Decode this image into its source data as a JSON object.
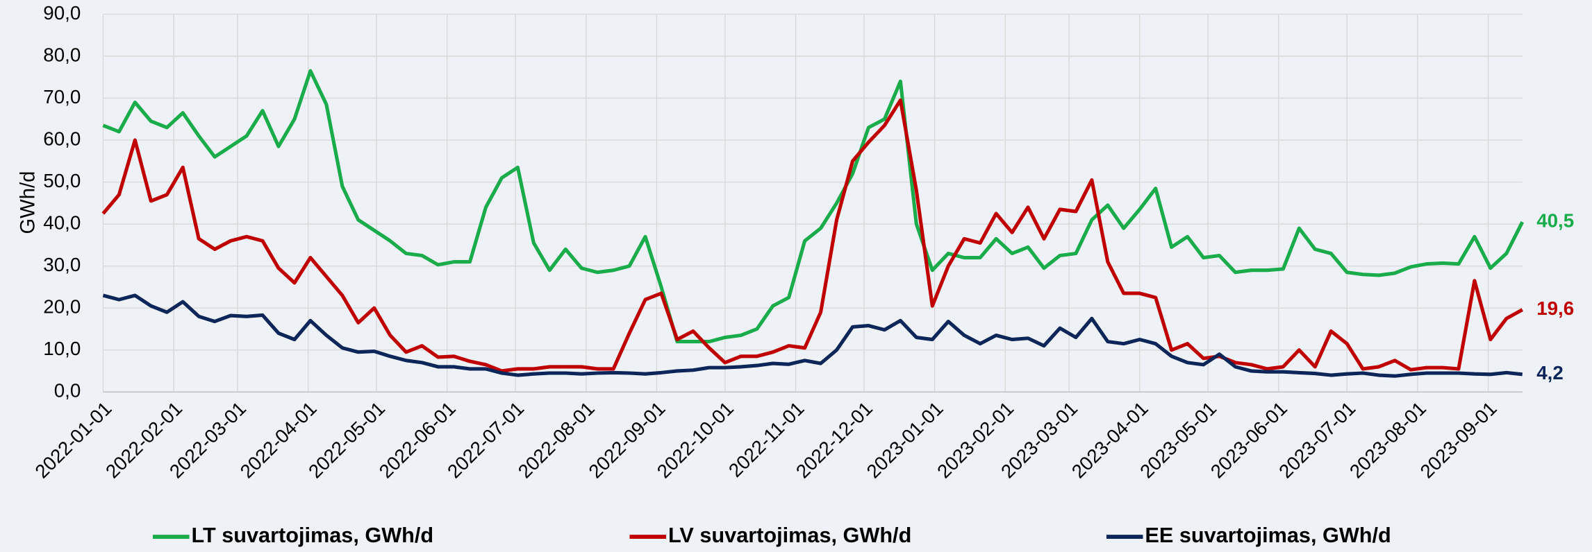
{
  "chart_data": {
    "type": "line",
    "y_label": "GWh/d",
    "x": [
      "2022-01-01",
      "2022-01-08",
      "2022-01-15",
      "2022-01-22",
      "2022-01-29",
      "2022-02-05",
      "2022-02-12",
      "2022-02-19",
      "2022-02-26",
      "2022-03-05",
      "2022-03-12",
      "2022-03-19",
      "2022-03-26",
      "2022-04-02",
      "2022-04-09",
      "2022-04-16",
      "2022-04-23",
      "2022-04-30",
      "2022-05-07",
      "2022-05-14",
      "2022-05-21",
      "2022-05-28",
      "2022-06-04",
      "2022-06-11",
      "2022-06-18",
      "2022-06-25",
      "2022-07-02",
      "2022-07-09",
      "2022-07-16",
      "2022-07-23",
      "2022-07-30",
      "2022-08-06",
      "2022-08-13",
      "2022-08-20",
      "2022-08-27",
      "2022-09-03",
      "2022-09-10",
      "2022-09-17",
      "2022-09-24",
      "2022-10-01",
      "2022-10-08",
      "2022-10-15",
      "2022-10-22",
      "2022-10-29",
      "2022-11-05",
      "2022-11-12",
      "2022-11-19",
      "2022-11-26",
      "2022-12-03",
      "2022-12-10",
      "2022-12-17",
      "2022-12-24",
      "2022-12-31",
      "2023-01-07",
      "2023-01-14",
      "2023-01-21",
      "2023-01-28",
      "2023-02-04",
      "2023-02-11",
      "2023-02-18",
      "2023-02-25",
      "2023-03-04",
      "2023-03-11",
      "2023-03-18",
      "2023-03-25",
      "2023-04-01",
      "2023-04-08",
      "2023-04-15",
      "2023-04-22",
      "2023-04-29",
      "2023-05-06",
      "2023-05-13",
      "2023-05-20",
      "2023-05-27",
      "2023-06-03",
      "2023-06-10",
      "2023-06-17",
      "2023-06-24",
      "2023-07-01",
      "2023-07-08",
      "2023-07-15",
      "2023-07-22",
      "2023-07-29",
      "2023-08-05",
      "2023-08-12",
      "2023-08-19",
      "2023-08-26",
      "2023-09-02",
      "2023-09-09",
      "2023-09-16"
    ],
    "xlim": [
      "2022-01-01",
      "2023-09-16"
    ],
    "xticks": [
      "2022-01-01",
      "2022-02-01",
      "2022-03-01",
      "2022-04-01",
      "2022-05-01",
      "2022-06-01",
      "2022-07-01",
      "2022-08-01",
      "2022-09-01",
      "2022-10-01",
      "2022-11-01",
      "2022-12-01",
      "2023-01-01",
      "2023-02-01",
      "2023-03-01",
      "2023-04-01",
      "2023-05-01",
      "2023-06-01",
      "2023-07-01",
      "2023-08-01",
      "2023-09-01"
    ],
    "ylim": [
      0,
      90
    ],
    "yticks": [
      {
        "value": 0,
        "label": "0,0"
      },
      {
        "value": 10,
        "label": "10,0"
      },
      {
        "value": 20,
        "label": "20,0"
      },
      {
        "value": 30,
        "label": "30,0"
      },
      {
        "value": 40,
        "label": "40,0"
      },
      {
        "value": 50,
        "label": "50,0"
      },
      {
        "value": 60,
        "label": "60,0"
      },
      {
        "value": 70,
        "label": "70,0"
      },
      {
        "value": 80,
        "label": "80,0"
      },
      {
        "value": 90,
        "label": "90,0"
      }
    ],
    "grid": true,
    "legend": "bottom",
    "series": [
      {
        "name": "LT suvartojimas, GWh/d",
        "color": "#1aab4b",
        "values": [
          63.5,
          62,
          69,
          64.5,
          63,
          66.5,
          61,
          56,
          58.5,
          61,
          67,
          58.5,
          65,
          76.5,
          68.5,
          49,
          41,
          38.5,
          36,
          33,
          32.5,
          30.3,
          31,
          31,
          44,
          51,
          53.5,
          35.5,
          29,
          34,
          29.5,
          28.5,
          29,
          30,
          37,
          25,
          12,
          12,
          12,
          13,
          13.5,
          15,
          20.5,
          22.5,
          36,
          39,
          45,
          52,
          63,
          65,
          74,
          40,
          29,
          33,
          32,
          32,
          36.5,
          33,
          34.5,
          29.5,
          32.5,
          33,
          41,
          44.5,
          39,
          43.5,
          48.5,
          34.5,
          37,
          32,
          32.5,
          28.5,
          29,
          29,
          29.3,
          39,
          34,
          33,
          28.5,
          28,
          27.8,
          28.3,
          29.8,
          30.5,
          30.7,
          30.5,
          37,
          29.5,
          33,
          40.5
        ],
        "value_labels": [
          null,
          null,
          null,
          null,
          null,
          null,
          null,
          null,
          null,
          null,
          null,
          null,
          null,
          null,
          null,
          null,
          null,
          null,
          null,
          null,
          null,
          null,
          null,
          null,
          null,
          null,
          null,
          null,
          null,
          null,
          null,
          null,
          null,
          null,
          null,
          null,
          null,
          null,
          null,
          null,
          null,
          null,
          null,
          null,
          null,
          null,
          null,
          null,
          null,
          null,
          null,
          null,
          null,
          null,
          null,
          null,
          null,
          null,
          null,
          null,
          null,
          null,
          null,
          null,
          null,
          null,
          null,
          null,
          null,
          null,
          null,
          null,
          null,
          null,
          null,
          null,
          null,
          null,
          null,
          null,
          null,
          null,
          null,
          null,
          null,
          null,
          null,
          null,
          null,
          "40,5"
        ]
      },
      {
        "name": "LV suvartojimas, GWh/d",
        "color": "#c00000",
        "values": [
          42.5,
          47,
          60,
          45.5,
          47,
          53.5,
          36.5,
          34,
          36,
          37,
          36,
          29.5,
          26,
          32,
          27.5,
          23,
          16.5,
          20,
          13.5,
          9.5,
          11,
          8.3,
          8.5,
          7.3,
          6.5,
          5,
          5.5,
          5.5,
          6,
          6,
          6,
          5.5,
          5.5,
          14,
          22,
          23.5,
          12.5,
          14.5,
          10.5,
          7,
          8.5,
          8.5,
          9.5,
          11,
          10.5,
          19,
          41,
          55,
          59.5,
          63.5,
          69.5,
          48,
          20.5,
          30,
          36.5,
          35.5,
          42.5,
          38,
          44,
          36.5,
          43.5,
          43,
          50.5,
          31,
          23.5,
          23.5,
          22.5,
          10,
          11.5,
          8,
          8.5,
          7,
          6.5,
          5.5,
          6,
          10,
          6,
          14.5,
          11.5,
          5.5,
          6,
          7.5,
          5.3,
          5.8,
          5.8,
          5.5,
          26.5,
          12.5,
          17.5,
          19.6
        ],
        "value_labels": [
          null,
          null,
          null,
          null,
          null,
          null,
          null,
          null,
          null,
          null,
          null,
          null,
          null,
          null,
          null,
          null,
          null,
          null,
          null,
          null,
          null,
          null,
          null,
          null,
          null,
          null,
          null,
          null,
          null,
          null,
          null,
          null,
          null,
          null,
          null,
          null,
          null,
          null,
          null,
          null,
          null,
          null,
          null,
          null,
          null,
          null,
          null,
          null,
          null,
          null,
          null,
          null,
          null,
          null,
          null,
          null,
          null,
          null,
          null,
          null,
          null,
          null,
          null,
          null,
          null,
          null,
          null,
          null,
          null,
          null,
          null,
          null,
          null,
          null,
          null,
          null,
          null,
          null,
          null,
          null,
          null,
          null,
          null,
          null,
          null,
          null,
          null,
          null,
          null,
          "19,6"
        ]
      },
      {
        "name": "EE suvartojimas, GWh/d",
        "color": "#0d2659",
        "values": [
          23,
          22,
          23,
          20.5,
          19,
          21.5,
          18,
          16.8,
          18.2,
          18,
          18.3,
          14,
          12.5,
          17,
          13.5,
          10.5,
          9.5,
          9.7,
          8.5,
          7.5,
          7,
          6,
          6,
          5.5,
          5.5,
          4.5,
          4,
          4.3,
          4.5,
          4.5,
          4.3,
          4.5,
          4.6,
          4.5,
          4.3,
          4.6,
          5,
          5.2,
          5.8,
          5.8,
          6,
          6.3,
          6.8,
          6.6,
          7.5,
          6.8,
          10,
          15.5,
          15.8,
          14.8,
          17,
          13,
          12.5,
          16.8,
          13.5,
          11.5,
          13.5,
          12.5,
          12.8,
          11,
          15.2,
          13,
          17.5,
          12,
          11.5,
          12.5,
          11.5,
          8.5,
          7,
          6.5,
          9,
          6,
          5,
          4.8,
          4.8,
          4.6,
          4.4,
          4,
          4.3,
          4.5,
          4,
          3.8,
          4.2,
          4.5,
          4.5,
          4.5,
          4.3,
          4.2,
          4.6,
          4.2
        ],
        "value_labels": [
          null,
          null,
          null,
          null,
          null,
          null,
          null,
          null,
          null,
          null,
          null,
          null,
          null,
          null,
          null,
          null,
          null,
          null,
          null,
          null,
          null,
          null,
          null,
          null,
          null,
          null,
          null,
          null,
          null,
          null,
          null,
          null,
          null,
          null,
          null,
          null,
          null,
          null,
          null,
          null,
          null,
          null,
          null,
          null,
          null,
          null,
          null,
          null,
          null,
          null,
          null,
          null,
          null,
          null,
          null,
          null,
          null,
          null,
          null,
          null,
          null,
          null,
          null,
          null,
          null,
          null,
          null,
          null,
          null,
          null,
          null,
          null,
          null,
          null,
          null,
          null,
          null,
          null,
          null,
          null,
          null,
          null,
          null,
          null,
          null,
          null,
          null,
          null,
          null,
          "4,2"
        ]
      }
    ]
  }
}
